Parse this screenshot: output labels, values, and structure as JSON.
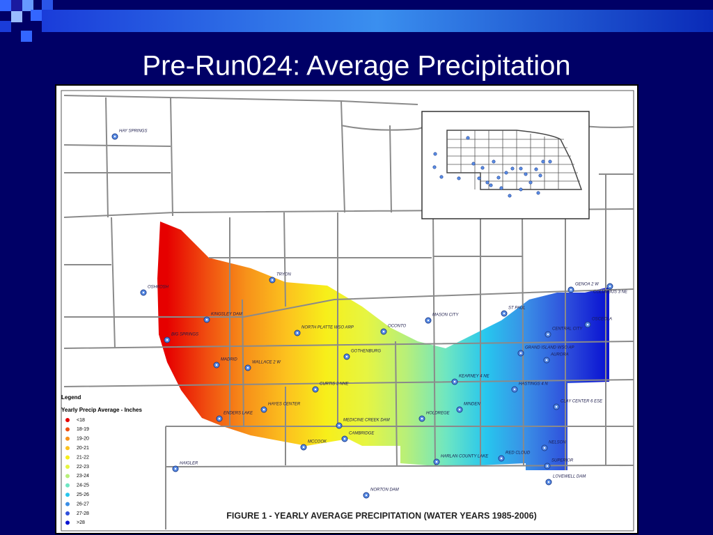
{
  "slide": {
    "title": "Pre-Run024:  Average Precipitation"
  },
  "map": {
    "stations": [
      {
        "label": "HAY SPRINGS"
      },
      {
        "label": "OSHKOSH"
      },
      {
        "label": "TRYON"
      },
      {
        "label": "KINGSLEY DAM"
      },
      {
        "label": "BIG SPRINGS"
      },
      {
        "label": "NORTH PLATTE WSO ARP"
      },
      {
        "label": "OCONTO"
      },
      {
        "label": "MASON CITY"
      },
      {
        "label": "ST PAUL"
      },
      {
        "label": "GENOA 2 W"
      },
      {
        "label": "COLUMBUS 3 NE"
      },
      {
        "label": "OSCEOLA"
      },
      {
        "label": "CENTRAL CITY"
      },
      {
        "label": "GRAND ISLAND WSO AP"
      },
      {
        "label": "AURORA"
      },
      {
        "label": "GOTHENBURG"
      },
      {
        "label": "MADRID"
      },
      {
        "label": "WALLACE 2 W"
      },
      {
        "label": "CURTIS 3 NNE"
      },
      {
        "label": "KEARNEY 4 NE"
      },
      {
        "label": "HASTINGS 4 N"
      },
      {
        "label": "HAYES CENTER"
      },
      {
        "label": "ENDERS LAKE"
      },
      {
        "label": "MINDEN"
      },
      {
        "label": "HOLDREGE"
      },
      {
        "label": "CLAY CENTER 6 ESE"
      },
      {
        "label": "MEDICINE CREEK DAM"
      },
      {
        "label": "CAMBRIDGE"
      },
      {
        "label": "MCCOOK"
      },
      {
        "label": "NELSON"
      },
      {
        "label": "RED CLOUD"
      },
      {
        "label": "HARLAN COUNTY LAKE"
      },
      {
        "label": "SUPERIOR"
      },
      {
        "label": "LOVEWELL DAM"
      },
      {
        "label": "HAIGLER"
      },
      {
        "label": "NORTON DAM"
      }
    ],
    "legend": {
      "title": "Legend",
      "subtitle": "Yearly Precip Average - Inches",
      "items": [
        {
          "label": "<18",
          "color": "#e60000"
        },
        {
          "label": "18-19",
          "color": "#f04e10"
        },
        {
          "label": "19-20",
          "color": "#f7921a"
        },
        {
          "label": "20-21",
          "color": "#fcc21e"
        },
        {
          "label": "21-22",
          "color": "#f7ef1a"
        },
        {
          "label": "22-23",
          "color": "#e6f542"
        },
        {
          "label": "23-24",
          "color": "#b7ef7a"
        },
        {
          "label": "24-25",
          "color": "#6ee6c2"
        },
        {
          "label": "25-26",
          "color": "#27c6ee"
        },
        {
          "label": "26-27",
          "color": "#3a8ee6"
        },
        {
          "label": "27-28",
          "color": "#2f50dc"
        },
        {
          "label": ">28",
          "color": "#0a14d2"
        }
      ]
    },
    "caption": "FIGURE 1 - YEARLY AVERAGE PRECIPITATION (WATER YEARS 1985-2006)"
  }
}
